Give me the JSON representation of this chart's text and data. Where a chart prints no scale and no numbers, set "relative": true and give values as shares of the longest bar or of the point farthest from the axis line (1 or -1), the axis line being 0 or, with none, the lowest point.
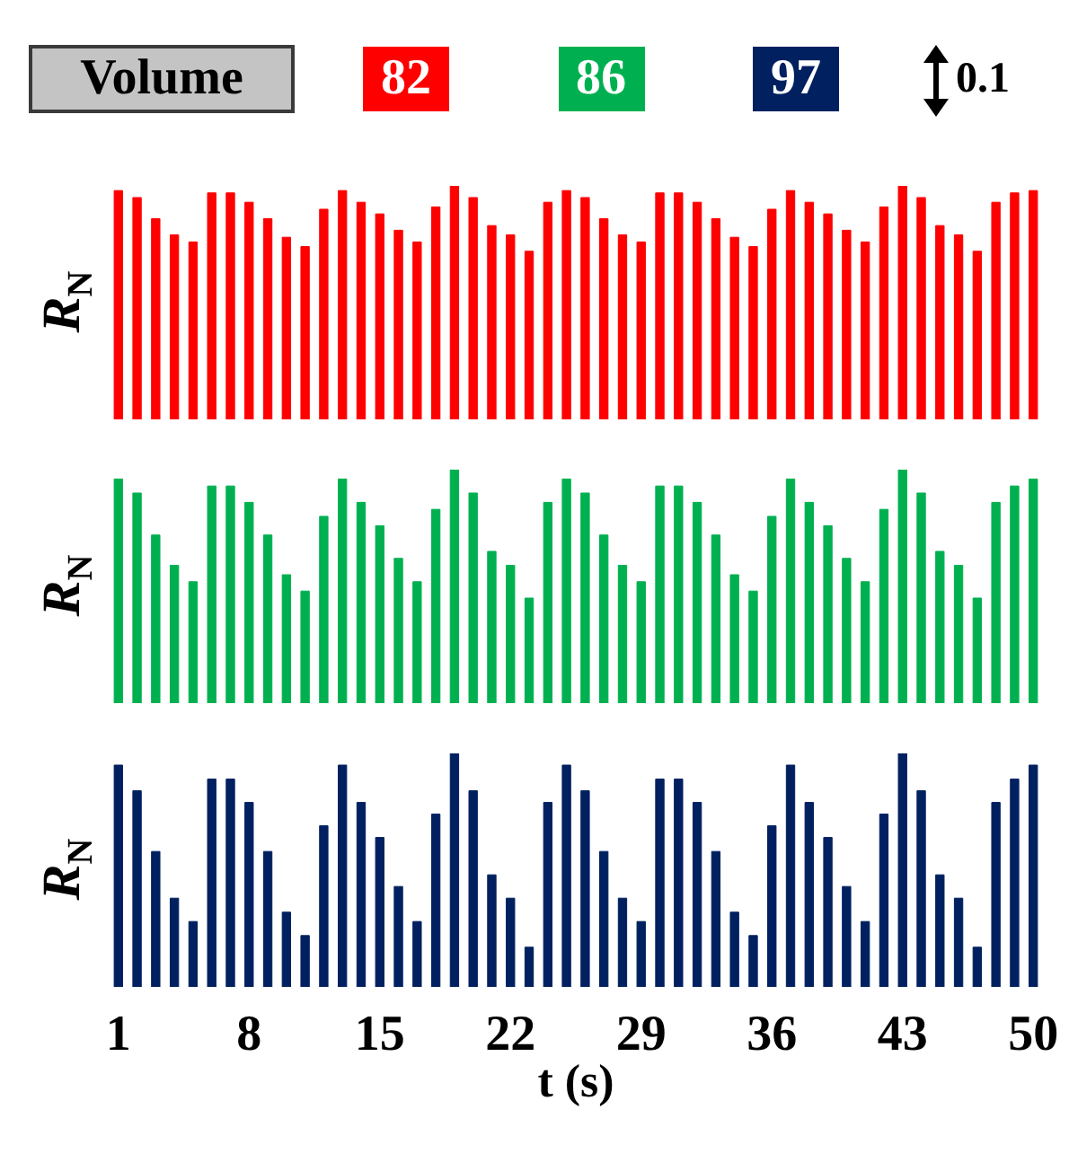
{
  "chart_data": [
    {
      "type": "bar",
      "ylabel": "R$_{N}$",
      "legend_title": "Volume",
      "legend": "top",
      "relative": true,
      "annotations": [
        "0.1"
      ],
      "tick_labels": false,
      "x": [
        1,
        2,
        3,
        4,
        5,
        6,
        7,
        8,
        9,
        10,
        11,
        12,
        13,
        14,
        15,
        16,
        17,
        18,
        19,
        20,
        21,
        22,
        23,
        24,
        25,
        26,
        27,
        28,
        29,
        30,
        31,
        32,
        33,
        34,
        35,
        36,
        37,
        38,
        39,
        40,
        41,
        42,
        43,
        44,
        45,
        46,
        47,
        48,
        49,
        50
      ],
      "xlim": [
        0,
        51
      ],
      "series": [
        {
          "name": "82",
          "color": "#ff0000",
          "values": [
            0.98,
            0.95,
            0.86,
            0.79,
            0.76,
            0.97,
            0.97,
            0.93,
            0.86,
            0.78,
            0.74,
            0.9,
            0.98,
            0.93,
            0.88,
            0.81,
            0.76,
            0.91,
            1.0,
            0.95,
            0.83,
            0.79,
            0.72,
            0.93,
            0.98,
            0.95,
            0.86,
            0.79,
            0.76,
            0.97,
            0.97,
            0.93,
            0.86,
            0.78,
            0.74,
            0.9,
            0.98,
            0.93,
            0.88,
            0.81,
            0.76,
            0.91,
            1.0,
            0.95,
            0.83,
            0.79,
            0.72,
            0.93,
            0.97,
            0.98
          ]
        }
      ]
    },
    {
      "type": "bar",
      "ylabel": "R$_{N}$",
      "legend": "top",
      "relative": true,
      "tick_labels": false,
      "x": [
        1,
        2,
        3,
        4,
        5,
        6,
        7,
        8,
        9,
        10,
        11,
        12,
        13,
        14,
        15,
        16,
        17,
        18,
        19,
        20,
        21,
        22,
        23,
        24,
        25,
        26,
        27,
        28,
        29,
        30,
        31,
        32,
        33,
        34,
        35,
        36,
        37,
        38,
        39,
        40,
        41,
        42,
        43,
        44,
        45,
        46,
        47,
        48,
        49,
        50
      ],
      "xlim": [
        0,
        51
      ],
      "series": [
        {
          "name": "86",
          "color": "#00b050",
          "values": [
            0.96,
            0.9,
            0.72,
            0.59,
            0.52,
            0.93,
            0.93,
            0.86,
            0.72,
            0.55,
            0.48,
            0.8,
            0.96,
            0.86,
            0.76,
            0.62,
            0.52,
            0.83,
            1.0,
            0.9,
            0.65,
            0.59,
            0.45,
            0.86,
            0.96,
            0.9,
            0.72,
            0.59,
            0.52,
            0.93,
            0.93,
            0.86,
            0.72,
            0.55,
            0.48,
            0.8,
            0.96,
            0.86,
            0.76,
            0.62,
            0.52,
            0.83,
            1.0,
            0.9,
            0.65,
            0.59,
            0.45,
            0.86,
            0.93,
            0.96
          ]
        }
      ]
    },
    {
      "type": "bar",
      "ylabel": "R$_{N}$",
      "xlabel": "t (s)",
      "legend": "top",
      "relative": true,
      "x": [
        1,
        2,
        3,
        4,
        5,
        6,
        7,
        8,
        9,
        10,
        11,
        12,
        13,
        14,
        15,
        16,
        17,
        18,
        19,
        20,
        21,
        22,
        23,
        24,
        25,
        26,
        27,
        28,
        29,
        30,
        31,
        32,
        33,
        34,
        35,
        36,
        37,
        38,
        39,
        40,
        41,
        42,
        43,
        44,
        45,
        46,
        47,
        48,
        49,
        50
      ],
      "xlim": [
        0,
        51
      ],
      "xticks": [
        1,
        8,
        15,
        22,
        29,
        36,
        43,
        50
      ],
      "series": [
        {
          "name": "97",
          "color": "#002060",
          "values": [
            0.95,
            0.84,
            0.58,
            0.38,
            0.28,
            0.89,
            0.89,
            0.79,
            0.58,
            0.32,
            0.22,
            0.69,
            0.95,
            0.79,
            0.64,
            0.43,
            0.28,
            0.74,
            1.0,
            0.84,
            0.48,
            0.38,
            0.17,
            0.79,
            0.95,
            0.84,
            0.58,
            0.38,
            0.28,
            0.89,
            0.89,
            0.79,
            0.58,
            0.32,
            0.22,
            0.69,
            0.95,
            0.79,
            0.64,
            0.43,
            0.28,
            0.74,
            1.0,
            0.84,
            0.48,
            0.38,
            0.17,
            0.79,
            0.89,
            0.95
          ]
        }
      ]
    }
  ]
}
